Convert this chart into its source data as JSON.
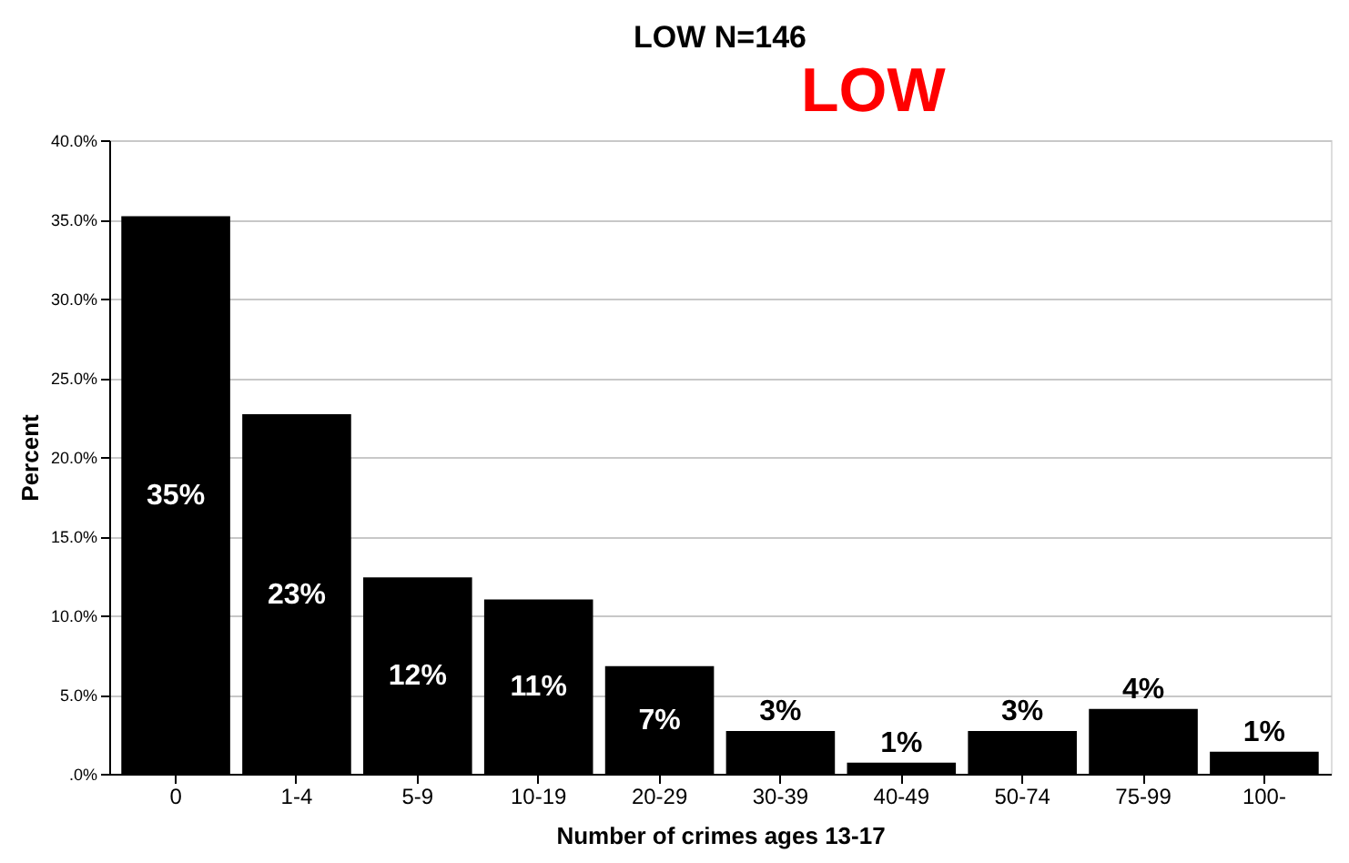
{
  "chart_data": {
    "type": "bar",
    "title": "LOW   N=146",
    "annotations": [
      "LOW"
    ],
    "xlabel": "Number of crimes ages 13-17",
    "ylabel": "Percent",
    "categories": [
      "0",
      "1-4",
      "5-9",
      "10-19",
      "20-29",
      "30-39",
      "40-49",
      "50-74",
      "75-99",
      "100-"
    ],
    "values": [
      35.2,
      22.7,
      12.4,
      11.0,
      6.8,
      2.7,
      0.7,
      2.7,
      4.1,
      1.4
    ],
    "value_labels": [
      "35%",
      "23%",
      "12%",
      "11%",
      "7%",
      "3%",
      "1%",
      "3%",
      "4%",
      "1%"
    ],
    "color": "#000000",
    "ylim": [
      0,
      40
    ],
    "yticks": [
      {
        "value": 0,
        "label": ".0%"
      },
      {
        "value": 5,
        "label": "5.0%"
      },
      {
        "value": 10,
        "label": "10.0%"
      },
      {
        "value": 15,
        "label": "15.0%"
      },
      {
        "value": 20,
        "label": "20.0%"
      },
      {
        "value": 25,
        "label": "25.0%"
      },
      {
        "value": 30,
        "label": "30.0%"
      },
      {
        "value": 35,
        "label": "35.0%"
      },
      {
        "value": 40,
        "label": "40.0%"
      }
    ],
    "grid": "y"
  }
}
